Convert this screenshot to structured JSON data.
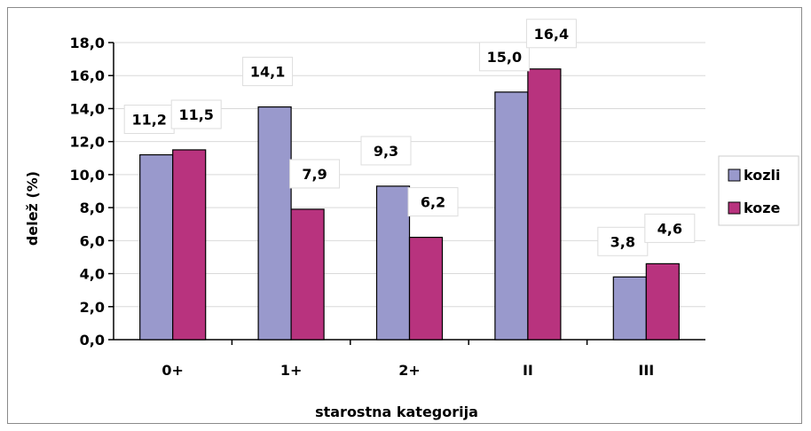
{
  "chart_data": {
    "type": "bar",
    "title": "",
    "xlabel": "starostna kategorija",
    "ylabel": "delež (%)",
    "categories": [
      "0+",
      "1+",
      "2+",
      "II",
      "III"
    ],
    "series": [
      {
        "name": "kozli",
        "values": [
          11.2,
          14.1,
          9.3,
          15.0,
          3.8
        ],
        "labels": [
          "11,2",
          "14,1",
          "9,3",
          "15,0",
          "3,8"
        ],
        "color": "#9999cc"
      },
      {
        "name": "koze",
        "values": [
          11.5,
          7.9,
          6.2,
          16.4,
          4.6
        ],
        "labels": [
          "11,5",
          "7,9",
          "6,2",
          "16,4",
          "4,6"
        ],
        "color": "#b8337e"
      }
    ],
    "ylim": [
      0,
      18
    ],
    "yticks": [
      "0,0",
      "2,0",
      "4,0",
      "6,0",
      "8,0",
      "10,0",
      "12,0",
      "14,0",
      "16,0",
      "18,0"
    ],
    "grid": true,
    "legend_position": "right"
  }
}
